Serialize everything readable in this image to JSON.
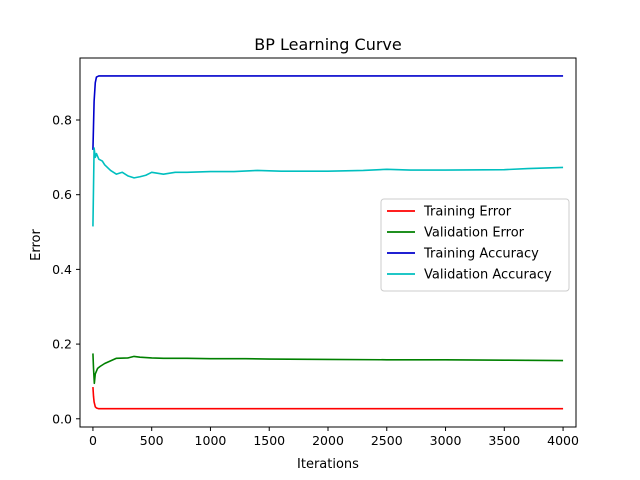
{
  "chart_data": {
    "type": "line",
    "title": "BP Learning Curve",
    "xlabel": "Iterations",
    "ylabel": "Error",
    "xlim": [
      -110,
      4110
    ],
    "ylim": [
      -0.022,
      0.966
    ],
    "xticks": [
      0,
      500,
      1000,
      1500,
      2000,
      2500,
      3000,
      3500,
      4000
    ],
    "yticks": [
      0.0,
      0.2,
      0.4,
      0.6,
      0.8
    ],
    "xtick_labels": [
      "0",
      "500",
      "1000",
      "1500",
      "2000",
      "2500",
      "3000",
      "3500",
      "4000"
    ],
    "ytick_labels": [
      "0.0",
      "0.2",
      "0.4",
      "0.6",
      "0.8"
    ],
    "grid": false,
    "legend": {
      "position": "center-right"
    },
    "series": [
      {
        "name": "Training Error",
        "color": "#ff0000",
        "x": [
          0,
          5,
          10,
          20,
          30,
          50,
          100,
          200,
          500,
          1000,
          2000,
          3000,
          4000
        ],
        "y": [
          0.085,
          0.06,
          0.045,
          0.032,
          0.029,
          0.027,
          0.027,
          0.027,
          0.027,
          0.027,
          0.027,
          0.027,
          0.027
        ]
      },
      {
        "name": "Validation Error",
        "color": "#008000",
        "x": [
          0,
          5,
          12,
          20,
          40,
          60,
          100,
          150,
          200,
          300,
          350,
          400,
          500,
          600,
          800,
          1000,
          1300,
          1500,
          2000,
          2500,
          3000,
          3500,
          4000
        ],
        "y": [
          0.175,
          0.135,
          0.095,
          0.12,
          0.135,
          0.14,
          0.148,
          0.155,
          0.162,
          0.163,
          0.167,
          0.165,
          0.163,
          0.162,
          0.162,
          0.161,
          0.161,
          0.16,
          0.159,
          0.158,
          0.158,
          0.157,
          0.156
        ]
      },
      {
        "name": "Training Accuracy",
        "color": "#0000cc",
        "x": [
          0,
          10,
          20,
          30,
          50,
          100,
          200,
          500,
          1000,
          2000,
          3000,
          4000
        ],
        "y": [
          0.72,
          0.85,
          0.9,
          0.915,
          0.918,
          0.918,
          0.918,
          0.918,
          0.918,
          0.918,
          0.918,
          0.918
        ]
      },
      {
        "name": "Validation Accuracy",
        "color": "#00bfbf",
        "x": [
          0,
          5,
          10,
          20,
          30,
          50,
          80,
          100,
          150,
          200,
          250,
          300,
          350,
          400,
          450,
          500,
          600,
          700,
          800,
          1000,
          1200,
          1400,
          1600,
          2000,
          2300,
          2500,
          2700,
          3000,
          3500,
          3700,
          4000
        ],
        "y": [
          0.515,
          0.62,
          0.725,
          0.7,
          0.71,
          0.695,
          0.69,
          0.68,
          0.665,
          0.655,
          0.66,
          0.65,
          0.645,
          0.648,
          0.652,
          0.66,
          0.655,
          0.66,
          0.66,
          0.662,
          0.662,
          0.665,
          0.663,
          0.663,
          0.665,
          0.668,
          0.666,
          0.666,
          0.667,
          0.67,
          0.673
        ]
      }
    ]
  }
}
